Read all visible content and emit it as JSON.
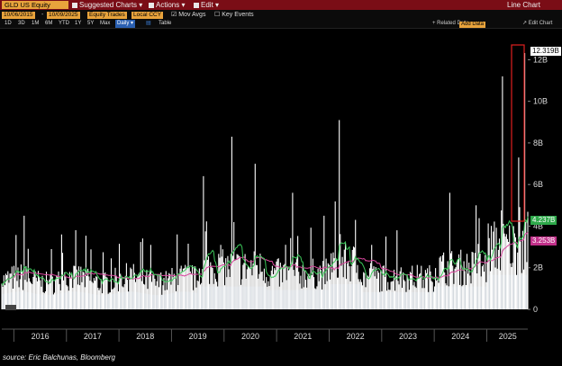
{
  "toolbar": {
    "ticker": "GLD US Equity",
    "suggested_charts": "Suggested Charts",
    "actions": "Actions",
    "edit": "Edit",
    "chart_type": "Line Chart"
  },
  "settings": {
    "start_date": "10/06/2015",
    "end_date": "10/09/2025",
    "metric": "Equity Trades",
    "currency": "Local CCY",
    "mov_avgs": "Mov Avgs",
    "key_events": "Key Events"
  },
  "ranges": {
    "items": [
      "1D",
      "3D",
      "1M",
      "6M",
      "YTD",
      "1Y",
      "5Y",
      "Max"
    ],
    "frequency": "Daily",
    "table": "Table",
    "related_data": "Related Data",
    "add_data": "Add Data",
    "edit_chart": "Edit Chart"
  },
  "chart_data": {
    "type": "bar",
    "x_tick_labels": [
      "2016",
      "2017",
      "2018",
      "2019",
      "2020",
      "2021",
      "2022",
      "2023",
      "2024",
      "2025"
    ],
    "y_tick_labels": [
      "0",
      "2B",
      "4B",
      "6B",
      "8B",
      "10B",
      "12B"
    ],
    "ylim": [
      0,
      12.5
    ],
    "last_value_label": "12.319B",
    "ma_short_label": "4.237B",
    "ma_long_label": "3.253B",
    "colors": {
      "bars": "#ffffff",
      "area": "#0f2a47",
      "ma_short": "#3cc85a",
      "ma_long": "#d9479e",
      "highlight": "#e02020"
    },
    "spikes": [
      {
        "date": 2016.2,
        "value": 4.5
      },
      {
        "date": 2016.9,
        "value": 3.6
      },
      {
        "date": 2018.6,
        "value": 3.1
      },
      {
        "date": 2019.1,
        "value": 3.6
      },
      {
        "date": 2019.6,
        "value": 6.4
      },
      {
        "date": 2020.15,
        "value": 8.3
      },
      {
        "date": 2020.6,
        "value": 7.0
      },
      {
        "date": 2021.3,
        "value": 5.6
      },
      {
        "date": 2021.9,
        "value": 4.5
      },
      {
        "date": 2022.2,
        "value": 9.1
      },
      {
        "date": 2022.5,
        "value": 4.3
      },
      {
        "date": 2023.3,
        "value": 3.8
      },
      {
        "date": 2024.3,
        "value": 5.6
      },
      {
        "date": 2024.8,
        "value": 5.0
      },
      {
        "date": 2025.3,
        "value": 11.2
      },
      {
        "date": 2025.6,
        "value": 7.3
      },
      {
        "date": 2025.72,
        "value": 12.319
      }
    ]
  },
  "footer": {
    "source": "source: Eric Balchunas, Bloomberg"
  }
}
